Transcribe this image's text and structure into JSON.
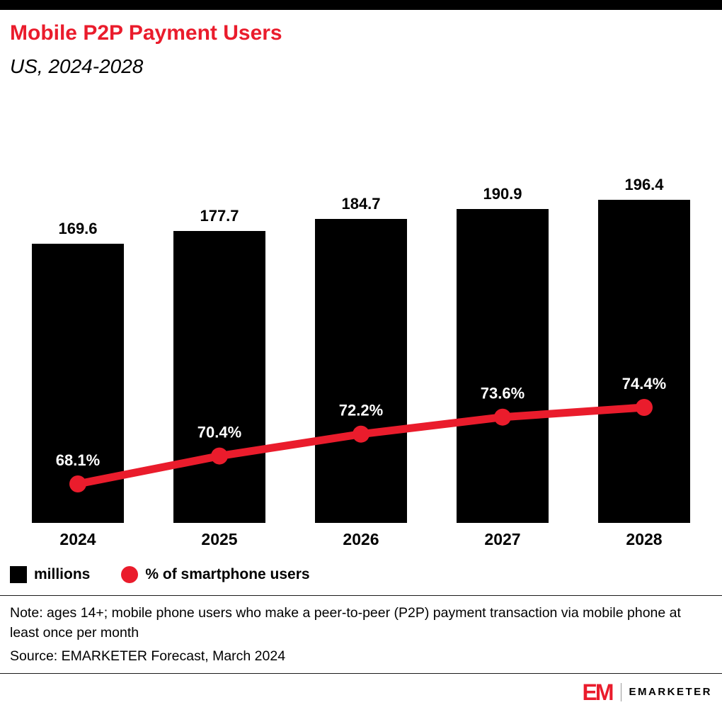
{
  "header": {
    "title": "Mobile P2P Payment Users",
    "subtitle": "US, 2024-2028"
  },
  "colors": {
    "accent_red": "#EA1C2C",
    "bar_black": "#000000",
    "label_white": "#ffffff"
  },
  "chart_data": {
    "type": "bar",
    "categories": [
      "2024",
      "2025",
      "2026",
      "2027",
      "2028"
    ],
    "series": [
      {
        "name": "millions",
        "type": "bar",
        "color": "#000000",
        "values": [
          169.6,
          177.7,
          184.7,
          190.9,
          196.4
        ],
        "labels": [
          "169.6",
          "177.7",
          "184.7",
          "190.9",
          "196.4"
        ]
      },
      {
        "name": "% of smartphone users",
        "type": "line",
        "color": "#EA1C2C",
        "values": [
          68.1,
          70.4,
          72.2,
          73.6,
          74.4
        ],
        "labels": [
          "68.1%",
          "70.4%",
          "72.2%",
          "73.6%",
          "74.4%"
        ]
      }
    ],
    "title": "Mobile P2P Payment Users",
    "subtitle": "US, 2024-2028",
    "xlabel": "",
    "ylabel": "",
    "legend_position": "bottom-left",
    "grid": false
  },
  "legend": {
    "items": [
      {
        "label": "millions",
        "swatch": "black-square"
      },
      {
        "label": "% of smartphone users",
        "swatch": "red-circle"
      }
    ]
  },
  "notes": {
    "note": "Note: ages 14+; mobile phone users who make a peer-to-peer (P2P) payment transaction via mobile phone at least once per month",
    "source": "Source: EMARKETER Forecast, March 2024"
  },
  "footer": {
    "logo_mark": "EM",
    "brand": "EMARKETER"
  }
}
